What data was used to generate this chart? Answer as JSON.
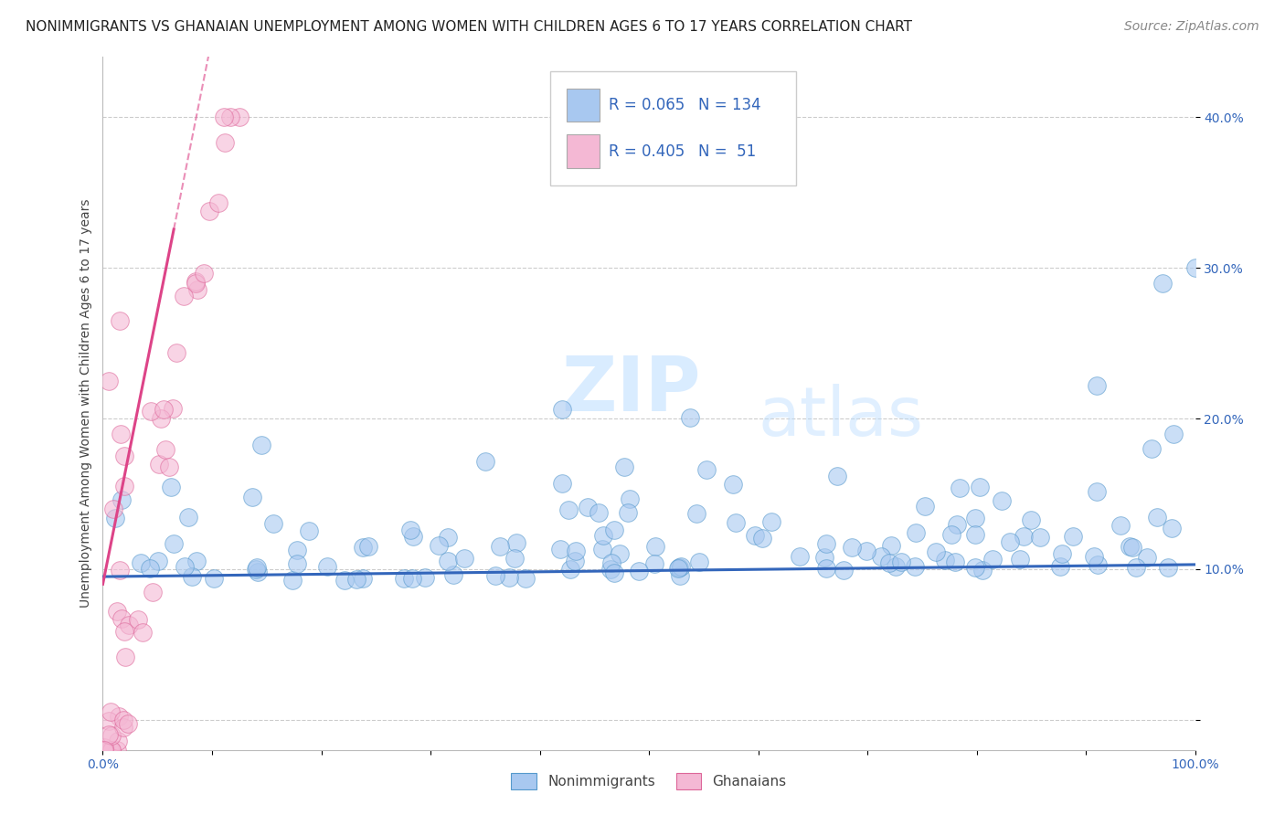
{
  "title": "NONIMMIGRANTS VS GHANAIAN UNEMPLOYMENT AMONG WOMEN WITH CHILDREN AGES 6 TO 17 YEARS CORRELATION CHART",
  "source": "Source: ZipAtlas.com",
  "ylabel": "Unemployment Among Women with Children Ages 6 to 17 years",
  "xlim": [
    0.0,
    1.0
  ],
  "ylim": [
    -0.02,
    0.44
  ],
  "xticks": [
    0.0,
    0.1,
    0.2,
    0.3,
    0.4,
    0.5,
    0.6,
    0.7,
    0.8,
    0.9,
    1.0
  ],
  "xticklabels": [
    "0.0%",
    "",
    "",
    "",
    "",
    "",
    "",
    "",
    "",
    "",
    "100.0%"
  ],
  "yticks": [
    0.0,
    0.1,
    0.2,
    0.3,
    0.4
  ],
  "yticklabels": [
    "",
    "10.0%",
    "20.0%",
    "30.0%",
    "40.0%"
  ],
  "nonimm_R": 0.065,
  "nonimm_N": 134,
  "ghana_R": 0.405,
  "ghana_N": 51,
  "nonimm_color": "#a8c8f0",
  "ghana_color": "#f4b8d4",
  "nonimm_edge_color": "#5599cc",
  "ghana_edge_color": "#dd6699",
  "nonimm_line_color": "#3366bb",
  "ghana_line_color": "#dd4488",
  "background_color": "#ffffff",
  "grid_color": "#cccccc",
  "watermark": "ZIPatlas",
  "watermark_color_zip": "#bbddff",
  "watermark_color_atlas": "#bbddff",
  "title_fontsize": 11,
  "source_fontsize": 10,
  "axis_fontsize": 10,
  "tick_fontsize": 10,
  "legend_text_color": "#3366bb",
  "tick_color": "#3366bb"
}
